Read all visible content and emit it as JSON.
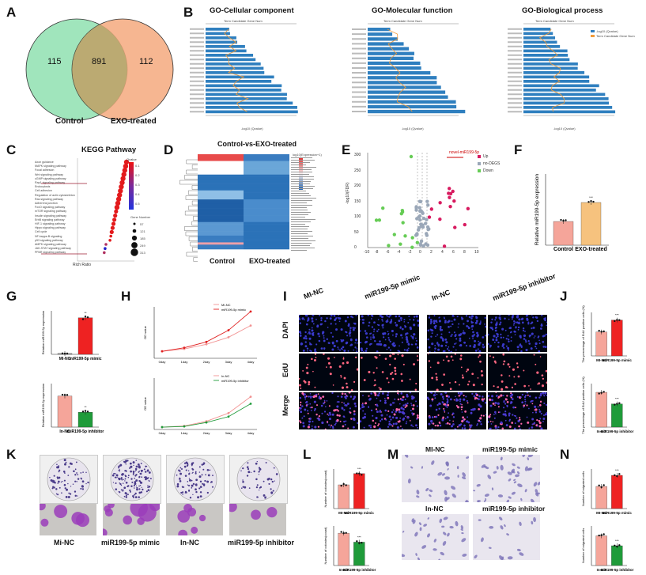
{
  "panels": {
    "A": "A",
    "B": "B",
    "C": "C",
    "D": "D",
    "E": "E",
    "F": "F",
    "G": "G",
    "H": "H",
    "I": "I",
    "J": "J",
    "K": "K",
    "L": "L",
    "M": "M",
    "N": "N"
  },
  "venn": {
    "left": "115",
    "center": "891",
    "right": "112",
    "left_label": "Control",
    "right_label": "EXO-treated",
    "left_color": "#8fe0b0",
    "right_color": "#f4a97e"
  },
  "go": {
    "cc_title": "GO-Cellular component",
    "mf_title": "GO-Molecular function",
    "bp_title": "GO-Biological process",
    "top_axis": "Term Candidate Gene Num",
    "x_axis": "-log10 (Qvalue)",
    "legend_1": "-log10 (Qvalue)",
    "legend_2": "Term Candidate Gene Num",
    "bar_color": "#2f7fbf",
    "line_color": "#f29b3a"
  },
  "kegg": {
    "title": "KEGG Pathway",
    "xlabel": "Rich Ratio",
    "qlabel": "Qvalue",
    "gene_label": "Gene Number",
    "pathways": [
      "Axon guidance",
      "MAPK signaling pathway",
      "Focal adhesion",
      "Wnt signaling pathway",
      "cGMP signaling pathway",
      "Rap1 signaling pathway",
      "Endocytosis",
      "Cell adhesion",
      "Regulation of actin cytoskeleton",
      "Ras signaling pathway",
      "Adherens junction",
      "FoxO signaling pathway",
      "mTOR signaling pathway",
      "Insulin signaling pathway",
      "ErbB signaling pathway",
      "HIF-1 signaling pathway",
      "Hippo signaling pathway",
      "Cell cycle",
      "NF-kappa B signaling",
      "p53 signaling pathway",
      "AMPK signaling pathway",
      "JAK-STAT signaling pathway",
      "PPAR signaling pathway"
    ],
    "gene_sizes": [
      "57",
      "121",
      "185",
      "249",
      "313"
    ],
    "q_ticks": [
      "0.1",
      "0.2",
      "0.3",
      "0.4",
      "0.5"
    ]
  },
  "heatmap": {
    "title": "Control-vs-EXO-treated",
    "col1": "Control",
    "col2": "EXO-treated",
    "scale_label": "log10(Expression+1)"
  },
  "volcano": {
    "annotation": "novel-miR199-5p",
    "ylabel": "-log10(FDR)",
    "legend": [
      "Up",
      "no-DEGS",
      "Down"
    ],
    "xticks": [
      "-10",
      "-8",
      "-6",
      "-4",
      "-2",
      "0",
      "2",
      "4",
      "6",
      "8",
      "10"
    ],
    "yticks": [
      "0",
      "50",
      "100",
      "150",
      "200",
      "250",
      "300"
    ]
  },
  "chart_data": [
    {
      "type": "bar",
      "panel": "F",
      "categories": [
        "Control",
        "EXO-treated"
      ],
      "values": [
        1.0,
        1.8
      ],
      "ylabel": "Relative miR199-5p expression",
      "yticks": [
        "0",
        "1",
        "2",
        "3"
      ],
      "sig": "***",
      "colors": [
        "#f5a59a",
        "#f6c27e"
      ]
    },
    {
      "type": "bar",
      "panel": "G-top",
      "categories": [
        "MI-NC",
        "miR199-5p mimic"
      ],
      "values": [
        1,
        42
      ],
      "ylabel": "Relative miR199-5p expression",
      "sig": "**",
      "colors": [
        "#999999",
        "#ee2222"
      ]
    },
    {
      "type": "bar",
      "panel": "G-bottom",
      "categories": [
        "In-NC",
        "miR199-5p inhibitor"
      ],
      "values": [
        1.0,
        0.48
      ],
      "ylabel": "Relative miR199-5p expression",
      "sig": "**",
      "colors": [
        "#f5a59a",
        "#1f9b3a"
      ]
    },
    {
      "type": "line",
      "panel": "H-top",
      "x": [
        "0day",
        "1day",
        "2day",
        "3day",
        "4day"
      ],
      "ylabel": "OD value",
      "series": [
        {
          "name": "MI-NC",
          "values": [
            0.3,
            0.4,
            0.6,
            0.9,
            1.4
          ]
        },
        {
          "name": "miR199-5p mimic",
          "values": [
            0.3,
            0.45,
            0.7,
            1.2,
            2.0
          ]
        }
      ],
      "colors": [
        "#f29393",
        "#e02020"
      ]
    },
    {
      "type": "line",
      "panel": "H-bottom",
      "x": [
        "0day",
        "1day",
        "2day",
        "3day",
        "4day"
      ],
      "ylabel": "OD value",
      "series": [
        {
          "name": "In-NC",
          "values": [
            0.1,
            0.15,
            0.35,
            0.7,
            1.4
          ]
        },
        {
          "name": "miR199-5p inhibitor",
          "values": [
            0.1,
            0.13,
            0.3,
            0.55,
            1.1
          ]
        }
      ],
      "colors": [
        "#f29393",
        "#1f9b3a"
      ]
    },
    {
      "type": "bar",
      "panel": "J-top",
      "categories": [
        "MI-NC",
        "miR199-5p mimic"
      ],
      "values": [
        22,
        33
      ],
      "ylabel": "The percentage of EdU positive cells (%)",
      "sig": "***",
      "colors": [
        "#f5a59a",
        "#ee2222"
      ]
    },
    {
      "type": "bar",
      "panel": "J-bottom",
      "categories": [
        "In-NC",
        "miR199-5p inhibitor"
      ],
      "values": [
        24,
        16
      ],
      "ylabel": "The percentage of EdU positive cells (%)",
      "sig": "***",
      "colors": [
        "#f5a59a",
        "#1f9b3a"
      ]
    },
    {
      "type": "bar",
      "panel": "L-top",
      "categories": [
        "MI-NC",
        "miR199-5p mimic"
      ],
      "values": [
        180,
        265
      ],
      "ylabel": "Number of colonies(count)",
      "sig": "***",
      "colors": [
        "#f5a59a",
        "#ee2222"
      ]
    },
    {
      "type": "bar",
      "panel": "L-bottom",
      "categories": [
        "In-NC",
        "miR199-5p inhibitor"
      ],
      "values": [
        180,
        130
      ],
      "ylabel": "Number of colonies(count)",
      "sig": "***",
      "colors": [
        "#f5a59a",
        "#1f9b3a"
      ]
    },
    {
      "type": "bar",
      "panel": "N-top",
      "categories": [
        "MI-NC",
        "miR199-5p mimic"
      ],
      "values": [
        140,
        210
      ],
      "ylabel": "Number of migrated cells",
      "sig": "***",
      "colors": [
        "#f5a59a",
        "#ee2222"
      ]
    },
    {
      "type": "bar",
      "panel": "N-bottom",
      "categories": [
        "In-NC",
        "miR199-5p inhibitor"
      ],
      "values": [
        150,
        100
      ],
      "ylabel": "Number of migrated cells",
      "sig": "***",
      "colors": [
        "#f5a59a",
        "#1f9b3a"
      ]
    }
  ],
  "labels": {
    "g_top_x": "MI-NC   miR199-5p mimic",
    "g_bot_x": "In-NC   miR199-5p inhibitor",
    "h_top_legend1": "MI-NC",
    "h_top_legend2": "miR199-5p mimic",
    "h_bot_legend1": "In-NC",
    "h_bot_legend2": "miR199-5p inhibitor",
    "h_x": [
      "0day",
      "1day",
      "2day",
      "3day",
      "4day"
    ],
    "h_ylabel": "OD value",
    "i_cols": [
      "MI-NC",
      "miR199-5p mimic",
      "In-NC",
      "miR199-5p inhibitor"
    ],
    "i_rows": [
      "DAPI",
      "EdU",
      "Merge"
    ],
    "k_cols": [
      "Mi-NC",
      "miR199-5p mimic",
      "In-NC",
      "miR199-5p inhibitor"
    ],
    "m_cols": [
      "MI-NC",
      "miR199-5p mimic",
      "In-NC",
      "miR199-5p inhibitor"
    ],
    "j_x_top": "MI-NC  miR199-5p mimic",
    "j_x_bot": "In-NC  miR199-5p inhibitor",
    "l_x_top": "MI-NC  miR199-5p mimic",
    "l_x_bot": "In-NC  miR199-5p inhibitor",
    "n_x_top": "MI-NC  miR199-5p mimic",
    "n_x_bot": "In-NC  miR199-5p inhibitor",
    "l_ylabel": "Number of colonies(count)",
    "n_ylabel": "Number of migrated cells",
    "j_ylabel": "The percentage of EdU positive cells (%)"
  }
}
